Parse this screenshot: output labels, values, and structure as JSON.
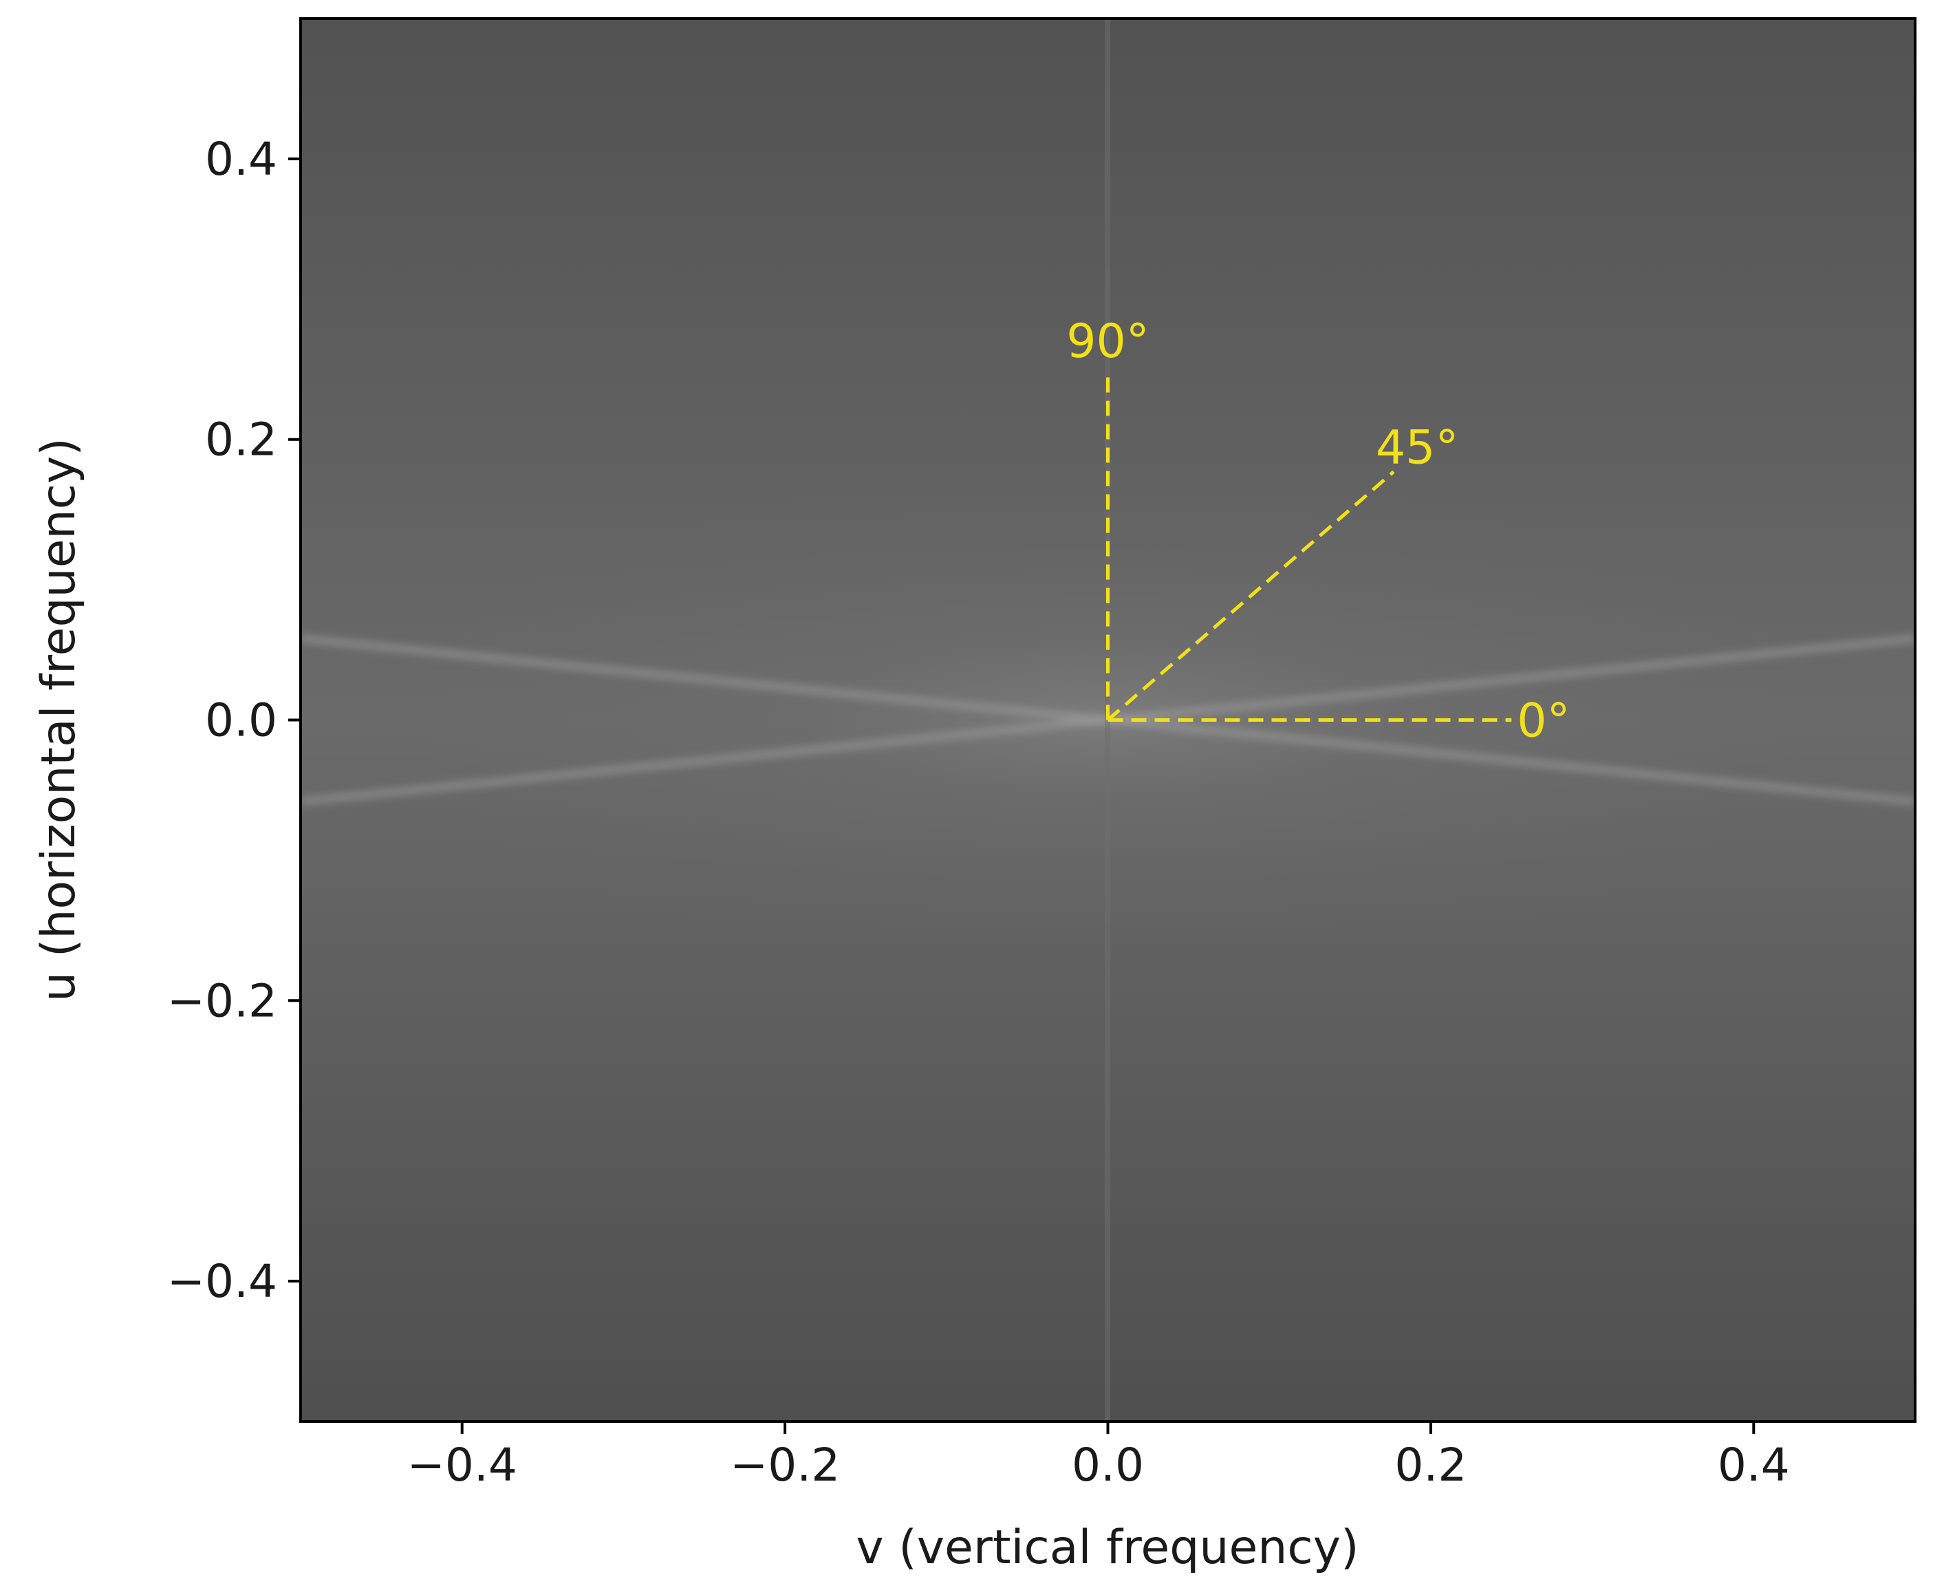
{
  "chart_data": {
    "type": "heatmap",
    "title": "",
    "xlabel": "v (vertical frequency)",
    "ylabel": "u (horizontal frequency)",
    "xlim": [
      -0.5,
      0.5
    ],
    "ylim": [
      -0.5,
      0.5
    ],
    "x_ticks": [
      -0.4,
      -0.2,
      0.0,
      0.2,
      0.4
    ],
    "y_ticks": [
      -0.4,
      -0.2,
      0.0,
      0.2,
      0.4
    ],
    "x_tick_labels": [
      "−0.4",
      "−0.2",
      "0.0",
      "0.2",
      "0.4"
    ],
    "y_tick_labels": [
      "−0.4",
      "−0.2",
      "0.0",
      "0.2",
      "0.4"
    ],
    "colormap": "gray",
    "grid": false,
    "image_description_values": {
      "background_level": 0.38,
      "streaks": [
        {
          "from": [
            -0.5,
            0.058
          ],
          "to": [
            0.5,
            -0.058
          ]
        },
        {
          "from": [
            -0.5,
            -0.058
          ],
          "to": [
            0.5,
            0.058
          ]
        }
      ]
    },
    "annotations": [
      {
        "label": "0°",
        "angle_deg": 0,
        "from": [
          0.0,
          0.0
        ],
        "to": [
          0.25,
          0.0
        ],
        "color": "#f2e01a",
        "linestyle": "dashed"
      },
      {
        "label": "45°",
        "angle_deg": 45,
        "from": [
          0.0,
          0.0
        ],
        "to": [
          0.177,
          0.177
        ],
        "color": "#f2e01a",
        "linestyle": "dashed"
      },
      {
        "label": "90°",
        "angle_deg": 90,
        "from": [
          0.0,
          0.0
        ],
        "to": [
          0.0,
          0.245
        ],
        "color": "#f2e01a",
        "linestyle": "dashed"
      }
    ]
  }
}
